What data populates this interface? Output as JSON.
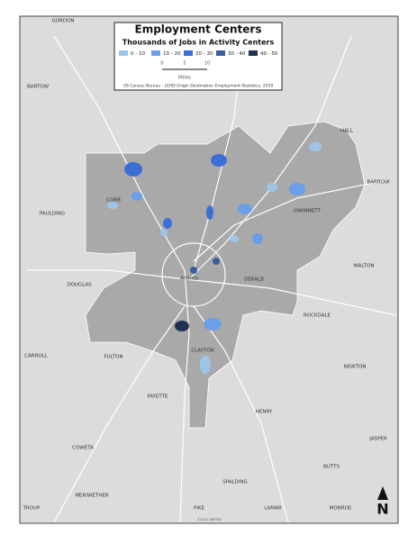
{
  "title": "Employment Centers",
  "subtitle": "Thousands of Jobs in Activity Centers",
  "legend": [
    {
      "label": "0 - 10",
      "color": "#9ec5e8"
    },
    {
      "label": "10 - 20",
      "color": "#6b9fe8"
    },
    {
      "label": "20 - 30",
      "color": "#3c6fd6"
    },
    {
      "label": "30 - 40",
      "color": "#3a5f9e"
    },
    {
      "label": "40 - 50",
      "color": "#1f3350"
    }
  ],
  "scale": {
    "ticks": [
      "0",
      "5",
      "10"
    ],
    "unit": "Miles"
  },
  "source": "US Census Bureau - LEHD Origin Destination Employment Statistics, 2010",
  "places": [
    "GORDON",
    "BARTOW",
    "HALL",
    "BARROW",
    "COBB",
    "PAULDING",
    "GWINNETT",
    "WALTON",
    "DOUGLAS",
    "Atlanta",
    "DEKALB",
    "ROCKDALE",
    "CARROLL",
    "FULTON",
    "CLAYTON",
    "NEWTON",
    "FAYETTE",
    "HENRY",
    "JASPER",
    "COWETA",
    "BUTTS",
    "MERIWETHER",
    "SPALDING",
    "TROUP",
    "PIKE",
    "LAMAR",
    "MONROE"
  ],
  "north": "N",
  "credit": "©2011 UNITED"
}
